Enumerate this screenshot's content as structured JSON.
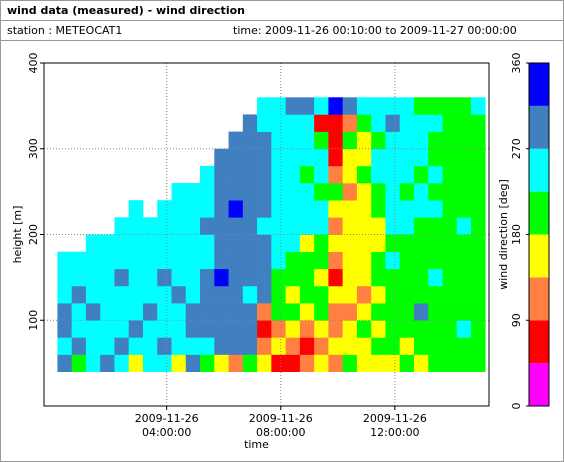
{
  "header": {
    "title": "wind data (measured) - wind direction",
    "station": "station : METEOCAT1",
    "time": "time: 2009-11-26 00:10:00 to 2009-11-27 00:00:00"
  },
  "chart_data": {
    "type": "heatmap",
    "x_label": "time",
    "y_label": "height [m]",
    "colorbar_label": "wind direction [deg]",
    "xlim": [
      -0.3,
      15.3
    ],
    "ylim": [
      0,
      400
    ],
    "xticks": [
      {
        "value": 4,
        "label": "2009-11-26\n04:00:00"
      },
      {
        "value": 8,
        "label": "2009-11-26\n08:00:00"
      },
      {
        "value": 12,
        "label": "2009-11-26\n12:00:00"
      }
    ],
    "yticks": [
      100,
      200,
      300,
      400
    ],
    "grid": true,
    "x": [
      0.42,
      0.92,
      1.42,
      1.92,
      2.42,
      2.92,
      3.42,
      3.92,
      4.42,
      4.92,
      5.42,
      5.92,
      6.42,
      6.92,
      7.42,
      7.92,
      8.42,
      8.92,
      9.42,
      9.92,
      10.42,
      10.92,
      11.42,
      11.92,
      12.42,
      12.92,
      13.42,
      13.92,
      14.42,
      14.92
    ],
    "y": [
      50,
      70,
      90,
      110,
      130,
      150,
      170,
      190,
      210,
      230,
      250,
      270,
      290,
      310,
      330,
      350
    ],
    "z": [
      [
        290,
        250,
        290,
        290,
        250,
        250,
        250,
        null,
        null,
        null,
        null,
        null,
        null,
        null,
        null,
        null
      ],
      [
        200,
        290,
        250,
        250,
        290,
        250,
        250,
        null,
        null,
        null,
        null,
        null,
        null,
        null,
        null,
        null
      ],
      [
        250,
        250,
        250,
        290,
        250,
        250,
        250,
        250,
        null,
        null,
        null,
        null,
        null,
        null,
        null,
        null
      ],
      [
        290,
        250,
        250,
        250,
        250,
        250,
        250,
        250,
        null,
        null,
        null,
        null,
        null,
        null,
        null,
        null
      ],
      [
        250,
        290,
        250,
        250,
        250,
        290,
        250,
        250,
        250,
        null,
        null,
        null,
        null,
        null,
        null,
        null
      ],
      [
        160,
        250,
        290,
        250,
        250,
        250,
        250,
        250,
        250,
        250,
        null,
        null,
        null,
        null,
        null,
        null
      ],
      [
        250,
        250,
        250,
        290,
        250,
        250,
        250,
        250,
        250,
        null,
        null,
        null,
        null,
        null,
        null,
        null
      ],
      [
        250,
        290,
        250,
        250,
        250,
        290,
        250,
        250,
        250,
        250,
        null,
        null,
        null,
        null,
        null,
        null
      ],
      [
        160,
        250,
        250,
        250,
        290,
        250,
        250,
        250,
        250,
        250,
        250,
        null,
        null,
        null,
        null,
        null
      ],
      [
        290,
        250,
        290,
        290,
        250,
        250,
        250,
        250,
        250,
        250,
        250,
        null,
        null,
        null,
        null,
        null
      ],
      [
        200,
        250,
        290,
        290,
        290,
        290,
        250,
        250,
        290,
        250,
        250,
        250,
        null,
        null,
        null,
        null
      ],
      [
        160,
        290,
        290,
        290,
        290,
        340,
        290,
        290,
        290,
        290,
        290,
        290,
        290,
        null,
        null,
        null
      ],
      [
        110,
        290,
        290,
        290,
        290,
        290,
        290,
        290,
        290,
        340,
        290,
        290,
        290,
        290,
        null,
        null
      ],
      [
        200,
        290,
        290,
        290,
        250,
        290,
        290,
        290,
        290,
        290,
        290,
        290,
        290,
        290,
        290,
        null
      ],
      [
        160,
        110,
        70,
        110,
        290,
        290,
        290,
        290,
        250,
        290,
        290,
        290,
        290,
        290,
        250,
        250
      ],
      [
        70,
        160,
        110,
        200,
        200,
        200,
        250,
        250,
        250,
        250,
        250,
        250,
        250,
        250,
        250,
        250
      ],
      [
        70,
        110,
        160,
        200,
        160,
        200,
        200,
        250,
        250,
        250,
        250,
        250,
        250,
        250,
        250,
        290
      ],
      [
        110,
        70,
        110,
        160,
        200,
        200,
        200,
        160,
        250,
        250,
        250,
        200,
        250,
        250,
        250,
        290
      ],
      [
        160,
        110,
        160,
        200,
        200,
        160,
        200,
        200,
        250,
        250,
        200,
        250,
        250,
        200,
        70,
        250
      ],
      [
        110,
        160,
        110,
        110,
        160,
        70,
        110,
        160,
        110,
        160,
        200,
        110,
        70,
        70,
        70,
        340
      ],
      [
        200,
        160,
        160,
        110,
        160,
        160,
        160,
        160,
        160,
        160,
        110,
        160,
        160,
        200,
        110,
        290
      ],
      [
        160,
        160,
        200,
        160,
        110,
        160,
        160,
        160,
        160,
        160,
        160,
        200,
        160,
        160,
        200,
        250
      ],
      [
        160,
        200,
        160,
        200,
        160,
        200,
        200,
        160,
        160,
        200,
        200,
        250,
        250,
        200,
        250,
        250
      ],
      [
        160,
        200,
        200,
        200,
        200,
        200,
        250,
        200,
        250,
        250,
        250,
        250,
        250,
        250,
        290,
        250
      ],
      [
        200,
        160,
        200,
        200,
        200,
        200,
        200,
        200,
        250,
        250,
        200,
        250,
        250,
        250,
        250,
        250
      ],
      [
        160,
        200,
        200,
        290,
        200,
        200,
        200,
        200,
        200,
        250,
        250,
        200,
        250,
        250,
        250,
        200
      ],
      [
        200,
        200,
        200,
        200,
        200,
        250,
        200,
        200,
        200,
        250,
        200,
        250,
        200,
        200,
        250,
        200
      ],
      [
        200,
        200,
        200,
        200,
        200,
        200,
        200,
        200,
        200,
        200,
        200,
        200,
        200,
        200,
        200,
        200
      ],
      [
        200,
        200,
        250,
        200,
        200,
        200,
        200,
        200,
        250,
        200,
        200,
        200,
        200,
        200,
        200,
        200
      ],
      [
        200,
        200,
        200,
        200,
        200,
        200,
        200,
        200,
        200,
        200,
        200,
        200,
        200,
        200,
        200,
        250
      ]
    ],
    "color_bins": [
      0,
      45,
      90,
      135,
      180,
      225,
      270,
      315,
      360
    ],
    "colors": [
      "#ff00ff",
      "#ff0000",
      "#ff8040",
      "#ffff00",
      "#00ff00",
      "#00ffff",
      "#4080c0",
      "#0000ff"
    ],
    "clim": [
      0,
      360
    ],
    "cticks": [
      0,
      90,
      180,
      270,
      360
    ]
  }
}
